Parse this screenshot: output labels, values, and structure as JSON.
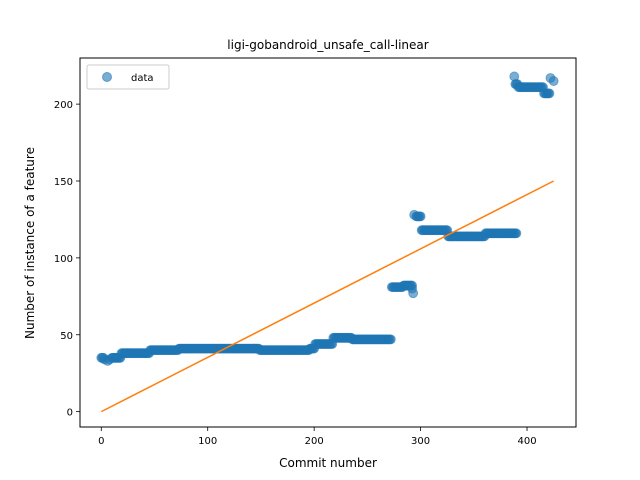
{
  "chart_data": {
    "type": "scatter",
    "title": "ligi-gobandroid_unsafe_call-linear",
    "xlabel": "Commit number",
    "ylabel": "Number of instance of a feature",
    "xlim": [
      -20,
      446
    ],
    "ylim": [
      -10,
      230
    ],
    "xticks": [
      0,
      100,
      200,
      300,
      400
    ],
    "yticks": [
      0,
      50,
      100,
      150,
      200
    ],
    "grid": false,
    "legend": {
      "placement": "top-left",
      "entries": [
        "data"
      ]
    },
    "colors": {
      "data": "#1f77b4",
      "fit": "#ff7f0e"
    },
    "series": [
      {
        "name": "data",
        "kind": "scatter",
        "segments": [
          {
            "x": [
              0,
              2
            ],
            "y": 35
          },
          {
            "x": 3,
            "y": 34
          },
          {
            "x": 6,
            "y": 33
          },
          {
            "x": 8,
            "y": 34
          },
          {
            "x": [
              10,
              18
            ],
            "y": 35
          },
          {
            "x": [
              19,
              45
            ],
            "y": 38
          },
          {
            "x": [
              46,
              72
            ],
            "y": 40
          },
          {
            "x": [
              73,
              148
            ],
            "y": 41
          },
          {
            "x": [
              149,
              195
            ],
            "y": 40
          },
          {
            "x": [
              196,
              200
            ],
            "y": 41
          },
          {
            "x": [
              201,
              217
            ],
            "y": 44
          },
          {
            "x": [
              218,
              235
            ],
            "y": 48
          },
          {
            "x": [
              236,
              272
            ],
            "y": 47
          },
          {
            "x": [
              273,
              283
            ],
            "y": 81
          },
          {
            "x": [
              284,
              292
            ],
            "y": 82
          },
          {
            "x": 292,
            "y": 80
          },
          {
            "x": 293,
            "y": 77
          },
          {
            "x": 294,
            "y": 128
          },
          {
            "x": [
              296,
              300
            ],
            "y": 127
          },
          {
            "x": [
              301,
              325
            ],
            "y": 118
          },
          {
            "x": [
              326,
              360
            ],
            "y": 114
          },
          {
            "x": [
              361,
              390
            ],
            "y": 116
          },
          {
            "x": 388,
            "y": 218
          },
          {
            "x": [
              389,
              391
            ],
            "y": 213
          },
          {
            "x": [
              392,
              415
            ],
            "y": 211
          },
          {
            "x": [
              416,
              421
            ],
            "y": 207
          },
          {
            "x": 422,
            "y": 217
          },
          {
            "x": 425,
            "y": 215
          }
        ]
      },
      {
        "name": "",
        "kind": "line",
        "points": [
          [
            0,
            0
          ],
          [
            425,
            150
          ]
        ]
      }
    ]
  }
}
